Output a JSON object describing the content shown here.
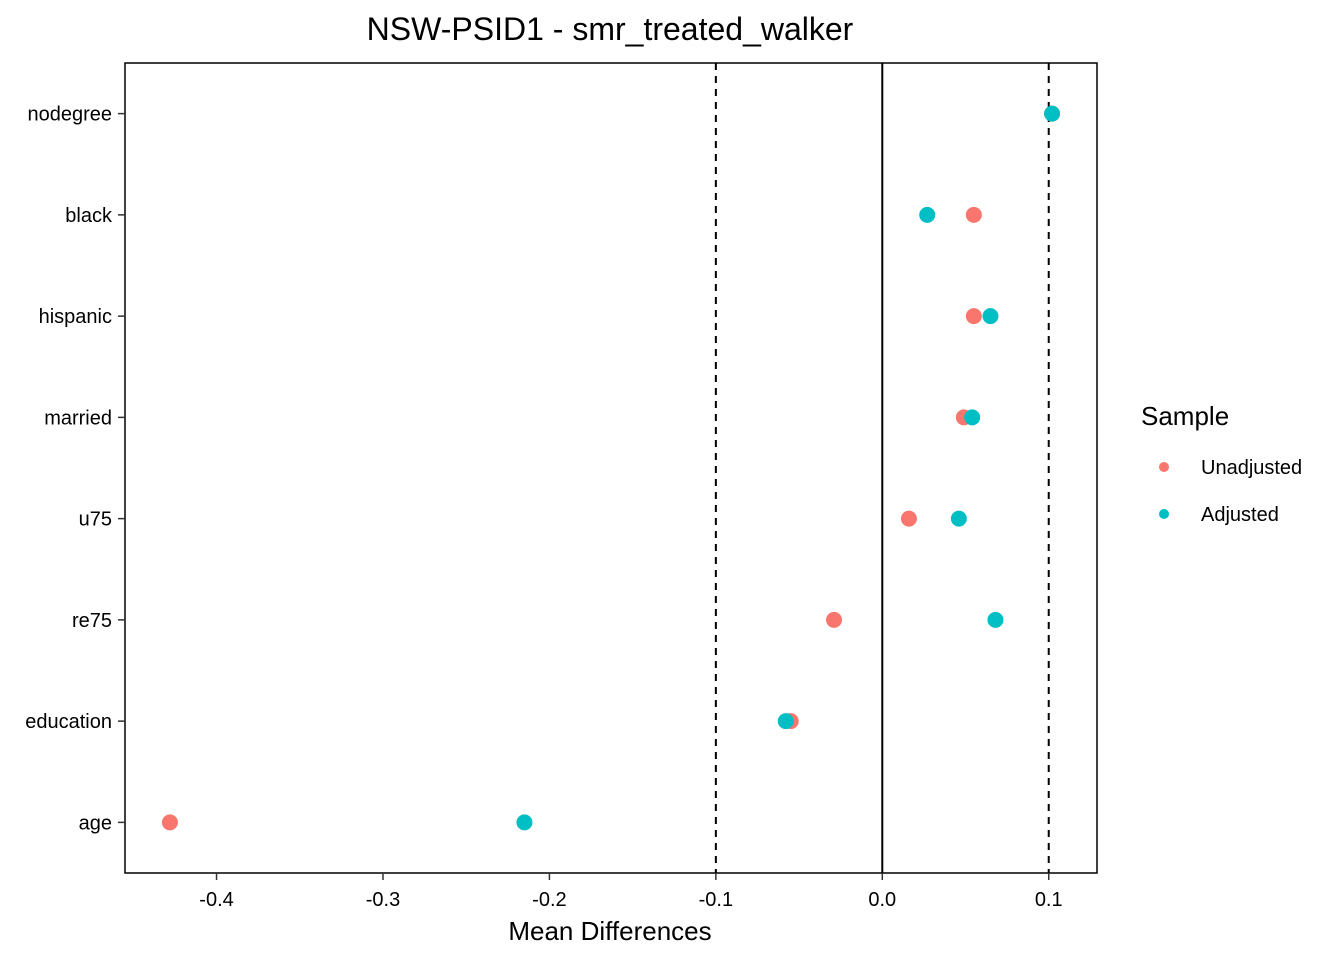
{
  "chart_data": {
    "type": "scatter",
    "title": "NSW-PSID1 - smr_treated_walker",
    "xlabel": "Mean Differences",
    "ylabel": "",
    "xlim": [
      -0.455,
      0.129
    ],
    "x_ticks": [
      -0.4,
      -0.3,
      -0.2,
      -0.1,
      0.0,
      0.1
    ],
    "x_tick_labels": [
      "-0.4",
      "-0.3",
      "-0.2",
      "-0.1",
      "0.0",
      "0.1"
    ],
    "categories": [
      "age",
      "education",
      "re75",
      "u75",
      "married",
      "hispanic",
      "black",
      "nodegree"
    ],
    "reference_lines": {
      "solid": [
        0.0
      ],
      "dashed": [
        -0.1,
        0.1
      ]
    },
    "grid": false,
    "legend": {
      "title": "Sample",
      "position": "right"
    },
    "series": [
      {
        "name": "Unadjusted",
        "color": "#F8766D",
        "values": [
          -0.428,
          -0.055,
          -0.029,
          0.016,
          0.049,
          0.055,
          0.055,
          0.102
        ]
      },
      {
        "name": "Adjusted",
        "color": "#00BFC4",
        "values": [
          -0.215,
          -0.058,
          0.068,
          0.046,
          0.054,
          0.065,
          0.027,
          0.102
        ]
      }
    ]
  }
}
